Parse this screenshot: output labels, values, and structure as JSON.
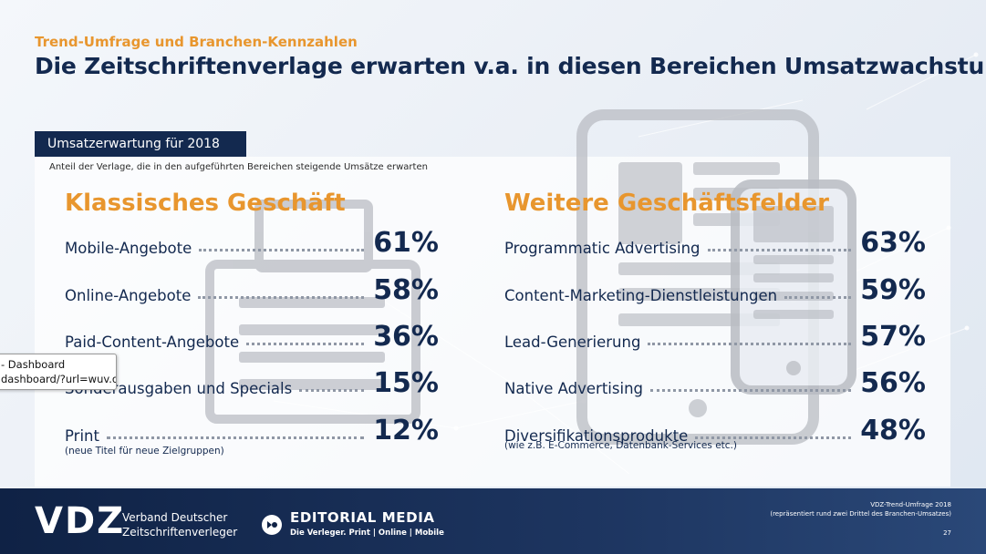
{
  "header": {
    "kicker": "Trend-Umfrage und Branchen-Kennzahlen",
    "headline": "Die Zeitschriftenverlage erwarten v.a. in diesen Bereichen Umsatzwachstum"
  },
  "section": {
    "tab_label": "Umsatzerwartung für 2018",
    "subtitle": "Anteil der Verlage, die in den aufgeführten Bereichen steigende Umsätze erwarten"
  },
  "left_column": {
    "title": "Klassisches Geschäft",
    "items": [
      {
        "label": "Mobile-Angebote",
        "value": "61%"
      },
      {
        "label": "Online-Angebote",
        "value": "58%"
      },
      {
        "label": "Paid-Content-Angebote",
        "value": "36%"
      },
      {
        "label": "Sonderausgaben und Specials",
        "value": "15%"
      },
      {
        "label": "Print",
        "value": "12%",
        "note": "(neue Titel für neue Zielgruppen)"
      }
    ]
  },
  "right_column": {
    "title": "Weitere Geschäftsfelder",
    "items": [
      {
        "label": "Programmatic Advertising",
        "value": "63%"
      },
      {
        "label": "Content-Marketing-Dienstleistungen",
        "value": "59%"
      },
      {
        "label": "Lead-Generierung",
        "value": "57%"
      },
      {
        "label": "Native Advertising",
        "value": "56%"
      },
      {
        "label": "Diversifikationsprodukte",
        "value": "48%",
        "note": "(wie z.B. E-Commerce, Datenbank-Services etc.)"
      }
    ]
  },
  "tooltip": {
    "line1": "- Dashboard",
    "line2": "dashboard/?url=wuv.de"
  },
  "footer": {
    "vdz_logo": "VDZ",
    "vdz_name_line1": "Verband Deutscher",
    "vdz_name_line2": "Zeitschriftenverleger",
    "em_name": "EDITORIAL MEDIA",
    "em_tagline": "Die Verleger. Print | Online | Mobile",
    "source_line1": "VDZ-Trend-Umfrage 2018",
    "source_line2": "(repräsentiert rund zwei Drittel des Branchen-Umsatzes)",
    "page_number": "27"
  },
  "colors": {
    "accent_orange": "#e8962e",
    "navy": "#13294f",
    "footer_navy": "#0f2245"
  },
  "icons": [
    "newspaper-stack-icon",
    "tablet-icon",
    "smartphone-icon",
    "editorial-media-logo-icon"
  ]
}
